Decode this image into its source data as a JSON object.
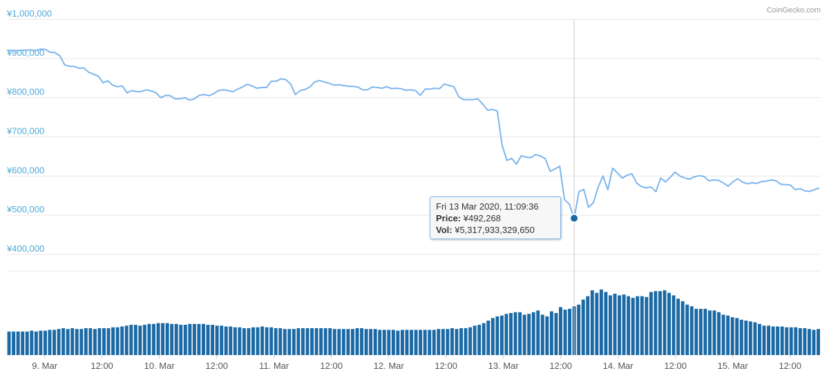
{
  "credit": "CoinGecko.com",
  "chart_data": {
    "type": "line",
    "price_series": {
      "name": "Price",
      "unit": "JPY",
      "ylim": [
        400000,
        1000000
      ],
      "y_ticks": [
        "¥1,000,000",
        "¥900,000",
        "¥800,000",
        "¥700,000",
        "¥600,000",
        "¥500,000",
        "¥400,000"
      ],
      "y_tick_values": [
        1000000,
        900000,
        800000,
        700000,
        600000,
        500000,
        400000
      ],
      "values": [
        921000,
        920000,
        920000,
        921000,
        921000,
        922000,
        920000,
        924000,
        923000,
        916000,
        915000,
        907000,
        884000,
        880000,
        880000,
        875000,
        876000,
        865000,
        860000,
        855000,
        838000,
        843000,
        832000,
        828000,
        830000,
        812000,
        818000,
        815000,
        816000,
        820000,
        817000,
        813000,
        800000,
        806000,
        805000,
        797000,
        797000,
        800000,
        794000,
        797000,
        806000,
        808000,
        805000,
        810000,
        818000,
        820000,
        818000,
        815000,
        822000,
        827000,
        834000,
        830000,
        824000,
        826000,
        826000,
        842000,
        842000,
        848000,
        846000,
        835000,
        808000,
        818000,
        821000,
        827000,
        840000,
        844000,
        840000,
        837000,
        832000,
        833000,
        831000,
        829000,
        829000,
        827000,
        820000,
        820000,
        827000,
        826000,
        824000,
        828000,
        823000,
        824000,
        823000,
        819000,
        820000,
        818000,
        806000,
        822000,
        822000,
        824000,
        823000,
        835000,
        831000,
        828000,
        802000,
        795000,
        795000,
        795000,
        797000,
        783000,
        768000,
        770000,
        766000,
        680000,
        640000,
        645000,
        630000,
        652000,
        648000,
        647000,
        655000,
        651000,
        644000,
        612000,
        618000,
        625000,
        540000,
        528000,
        492268,
        560000,
        566000,
        520000,
        532000,
        572000,
        600000,
        565000,
        620000,
        608000,
        595000,
        602000,
        606000,
        582000,
        573000,
        570000,
        572000,
        560000,
        595000,
        585000,
        597000,
        610000,
        600000,
        595000,
        592000,
        598000,
        601000,
        599000,
        588000,
        590000,
        589000,
        583000,
        574000,
        585000,
        593000,
        585000,
        580000,
        583000,
        581000,
        586000,
        587000,
        590000,
        588000,
        579000,
        578000,
        577000,
        565000,
        568000,
        562000,
        561000,
        565000,
        570000
      ]
    },
    "volume_series": {
      "name": "Vol",
      "values": [
        28,
        28,
        28,
        28,
        28,
        29,
        28,
        29,
        29,
        30,
        30,
        31,
        32,
        31,
        32,
        31,
        31,
        32,
        32,
        31,
        32,
        32,
        32,
        33,
        33,
        34,
        35,
        36,
        36,
        35,
        36,
        37,
        37,
        38,
        38,
        38,
        37,
        37,
        36,
        36,
        37,
        37,
        37,
        37,
        36,
        36,
        35,
        35,
        34,
        34,
        33,
        33,
        32,
        32,
        33,
        33,
        34,
        33,
        33,
        32,
        32,
        31,
        31,
        31,
        32,
        32,
        32,
        32,
        32,
        32,
        32,
        32,
        31,
        31,
        31,
        31,
        31,
        32,
        32,
        31,
        31,
        31,
        30,
        30,
        30,
        30,
        29,
        30,
        30,
        30,
        30,
        30,
        30,
        30,
        30,
        31,
        31,
        31,
        32,
        31,
        32,
        32,
        33,
        35,
        36,
        38,
        41,
        44,
        46,
        47,
        49,
        50,
        51,
        51,
        48,
        49,
        51,
        53,
        48,
        46,
        52,
        50,
        57,
        54,
        55,
        58,
        60,
        66,
        70,
        77,
        74,
        78,
        75,
        71,
        73,
        71,
        72,
        70,
        68,
        70,
        70,
        69,
        75,
        76,
        76,
        77,
        74,
        71,
        67,
        64,
        60,
        58,
        55,
        55,
        55,
        53,
        53,
        51,
        48,
        47,
        45,
        44,
        42,
        41,
        40,
        39,
        37,
        35,
        35,
        34,
        34,
        34,
        33,
        33,
        33,
        32,
        32,
        31,
        30,
        31
      ]
    },
    "x_ticks": [
      "9. Mar",
      "12:00",
      "10. Mar",
      "12:00",
      "11. Mar",
      "12:00",
      "12. Mar",
      "12:00",
      "13. Mar",
      "12:00",
      "14. Mar",
      "12:00",
      "15. Mar",
      "12:00"
    ],
    "x_tick_hours": [
      24,
      36,
      48,
      60,
      72,
      84,
      96,
      108,
      120,
      132,
      144,
      156,
      168,
      180
    ],
    "x_range_hours": [
      16.1,
      186.4
    ],
    "grid": true,
    "tooltip": {
      "date": "Fri 13 Mar 2020, 11:09:36",
      "price_label": "Price:",
      "price_value": "¥492,268",
      "vol_label": "Vol:",
      "vol_value": "¥5,317,933,329,650",
      "point_index": 118
    },
    "colors": {
      "price_line": "#7cb5ec",
      "volume_bar": "#1c6aa5",
      "grid": "#e6e6e6",
      "y_label": "#4aa8d8",
      "marker": "#1c6aa5",
      "crosshair": "#cccccc"
    }
  }
}
